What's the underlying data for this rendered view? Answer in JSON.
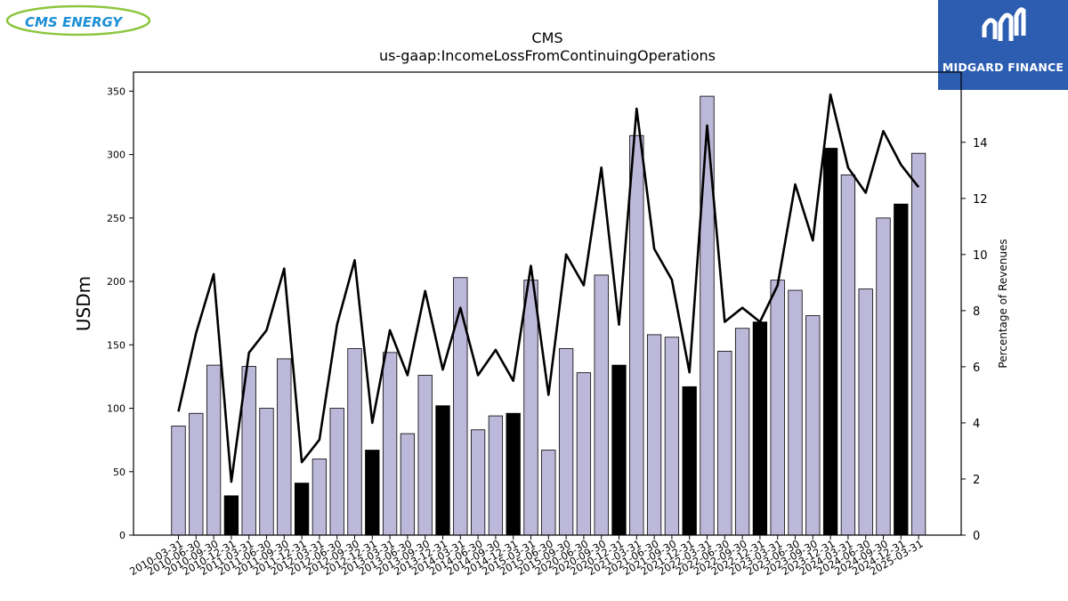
{
  "brand": {
    "left_logo_text": "CMS ENERGY",
    "right_logo_text": "MIDGARD FINANCE"
  },
  "chart_data": {
    "type": "bar",
    "title": "CMS",
    "subtitle": "us-gaap:IncomeLossFromContinuingOperations",
    "ylabel": "USDm",
    "y2label": "Percentage of Revenues",
    "ylim": [
      0,
      365
    ],
    "y2lim": [
      0,
      16.5
    ],
    "yticks": [
      0,
      50,
      100,
      150,
      200,
      250,
      300,
      350
    ],
    "y2ticks": [
      0,
      2,
      4,
      6,
      8,
      10,
      12,
      14
    ],
    "bar_color": "#bcb8d9",
    "highlight_color": "#000000",
    "line_color": "#000000",
    "categories": [
      "2010-03-31",
      "2010-06-30",
      "2010-09-30",
      "2010-12-31",
      "2011-03-31",
      "2011-06-30",
      "2011-09-30",
      "2011-12-31",
      "2012-03-31",
      "2012-06-30",
      "2012-09-30",
      "2012-12-31",
      "2013-03-31",
      "2013-06-30",
      "2013-09-30",
      "2013-12-31",
      "2014-03-31",
      "2014-06-30",
      "2014-09-30",
      "2014-12-31",
      "2015-03-31",
      "2015-06-30",
      "2015-09-30",
      "2020-06-30",
      "2020-09-30",
      "2020-12-31",
      "2021-03-31",
      "2021-06-30",
      "2021-09-30",
      "2021-12-31",
      "2022-03-31",
      "2022-06-30",
      "2022-09-30",
      "2022-12-31",
      "2023-03-31",
      "2023-06-30",
      "2023-09-30",
      "2023-12-31",
      "2024-03-31",
      "2024-06-30",
      "2024-09-30",
      "2024-12-31",
      "2025-03-31"
    ],
    "values": [
      86,
      96,
      134,
      31,
      133,
      100,
      139,
      41,
      60,
      100,
      147,
      67,
      144,
      80,
      126,
      102,
      203,
      83,
      94,
      96,
      201,
      67,
      147,
      128,
      205,
      134,
      315,
      158,
      156,
      117,
      346,
      145,
      163,
      168,
      201,
      193,
      173,
      305,
      284,
      194,
      250,
      261,
      301
    ],
    "highlighted": [
      false,
      false,
      false,
      true,
      false,
      false,
      false,
      true,
      false,
      false,
      false,
      true,
      false,
      false,
      false,
      true,
      false,
      false,
      false,
      true,
      false,
      false,
      false,
      false,
      false,
      true,
      false,
      false,
      false,
      true,
      false,
      false,
      false,
      true,
      false,
      false,
      false,
      true,
      false,
      false,
      false,
      true,
      false
    ],
    "series": [
      {
        "values": [
          4.4,
          7.2,
          9.3,
          1.9,
          6.5,
          7.3,
          9.5,
          2.6,
          3.4,
          7.5,
          9.8,
          4.0,
          7.3,
          5.7,
          8.7,
          5.9,
          8.1,
          5.7,
          6.6,
          5.5,
          9.6,
          5.0,
          10.0,
          8.9,
          13.1,
          7.5,
          15.2,
          10.2,
          9.1,
          5.8,
          14.6,
          7.6,
          8.1,
          7.6,
          8.9,
          12.5,
          10.5,
          15.7,
          13.1,
          12.2,
          14.4,
          13.2,
          12.4
        ]
      }
    ]
  }
}
